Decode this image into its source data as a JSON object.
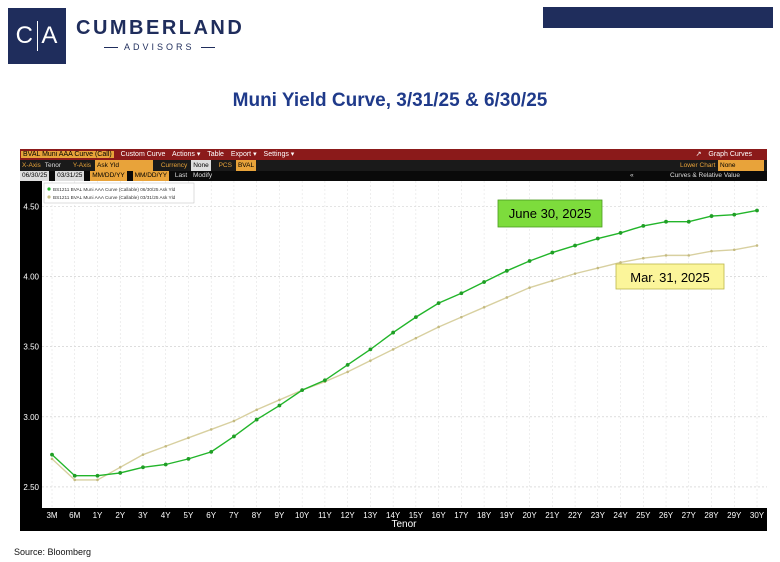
{
  "brand": {
    "initial1": "C",
    "initial2": "A",
    "name": "CUMBERLAND",
    "sub": "ADVISORS"
  },
  "slide_title": "Muni Yield Curve, 3/31/25 & 6/30/25",
  "terminal": {
    "row1": [
      "BVAL Muni AAA Curve (Call)",
      "Custom Curve",
      "Actions ▾",
      "Table",
      "Export ▾",
      "Settings ▾"
    ],
    "graph_label": "Graph Curves",
    "row2": {
      "xaxis_label": "X-Axis",
      "xaxis_val": "Tenor",
      "yaxis_label": "Y-Axis",
      "yaxis_val": "Ask Yld",
      "currency_label": "Currency",
      "currency_val": "None",
      "pcs_label": "PCS",
      "pcs_val": "BVAL",
      "lower_label": "Lower Chart",
      "lower_val": "None"
    },
    "row3": {
      "date1": "06/30/25",
      "date2": "03/31/25",
      "date3": "MM/DD/YY",
      "date4": "MM/DD/YY",
      "last": "Last",
      "modify": "Modify",
      "curves": "Curves & Relative Value"
    }
  },
  "chart_data": {
    "type": "line",
    "xlabel": "Tenor",
    "categories": [
      "3M",
      "6M",
      "1Y",
      "2Y",
      "3Y",
      "4Y",
      "5Y",
      "6Y",
      "7Y",
      "8Y",
      "9Y",
      "10Y",
      "11Y",
      "12Y",
      "13Y",
      "14Y",
      "15Y",
      "16Y",
      "17Y",
      "18Y",
      "19Y",
      "20Y",
      "21Y",
      "22Y",
      "23Y",
      "24Y",
      "25Y",
      "26Y",
      "27Y",
      "28Y",
      "29Y",
      "30Y"
    ],
    "ylim": [
      2.35,
      4.68
    ],
    "yticks": [
      "2.50",
      "3.00",
      "3.50",
      "4.00",
      "4.50"
    ],
    "grid": true,
    "legend": [
      "BS1211 BVAL Muni AAA Curve (Callable) 06/30/25 Ask Yld",
      "BS1211 BVAL Muni AAA Curve (Callable) 03/31/25 Ask Yld"
    ],
    "series": [
      {
        "values": [
          2.73,
          2.58,
          2.58,
          2.6,
          2.64,
          2.66,
          2.7,
          2.75,
          2.86,
          2.98,
          3.08,
          3.19,
          3.26,
          3.37,
          3.48,
          3.6,
          3.71,
          3.81,
          3.88,
          3.96,
          4.04,
          4.11,
          4.17,
          4.22,
          4.27,
          4.31,
          4.36,
          4.39,
          4.39,
          4.43,
          4.44,
          4.47
        ],
        "color": "#22b52a"
      },
      {
        "values": [
          2.7,
          2.55,
          2.55,
          2.64,
          2.73,
          2.79,
          2.85,
          2.91,
          2.97,
          3.05,
          3.12,
          3.19,
          3.25,
          3.32,
          3.4,
          3.48,
          3.56,
          3.64,
          3.71,
          3.78,
          3.85,
          3.92,
          3.97,
          4.02,
          4.06,
          4.1,
          4.13,
          4.15,
          4.15,
          4.18,
          4.19,
          4.22
        ],
        "color": "#d8d0a0"
      }
    ],
    "annotations": [
      {
        "text": "June 30, 2025",
        "fill": "#7ddc3c"
      },
      {
        "text": "Mar. 31, 2025",
        "fill": "#fbf59a"
      }
    ]
  },
  "source": "Source: Bloomberg"
}
